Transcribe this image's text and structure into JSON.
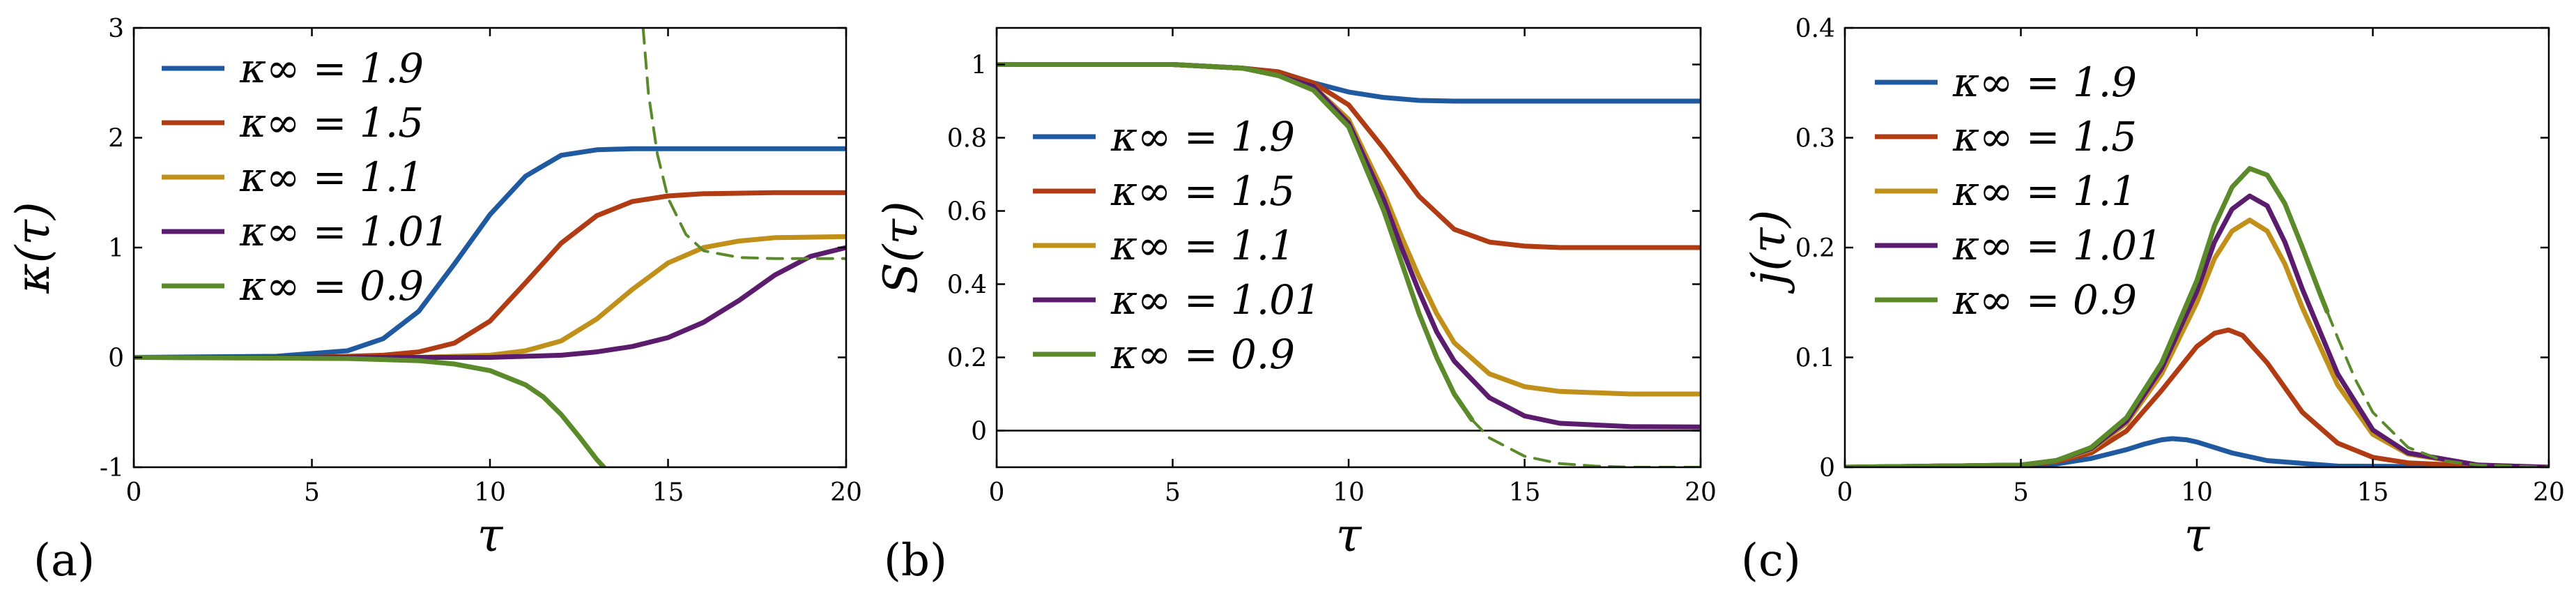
{
  "colors": {
    "blue": "#1f5aa0",
    "red": "#b13c14",
    "gold": "#c1901a",
    "purple": "#5c1c6e",
    "green": "#5b8a2a"
  },
  "chart_data": [
    {
      "type": "line",
      "panel_label": "(a)",
      "xlabel": "τ",
      "ylabel": "κ(τ)",
      "xlim": [
        0,
        20
      ],
      "ylim": [
        -1,
        3
      ],
      "xticks": [
        "0",
        "5",
        "10",
        "15",
        "20"
      ],
      "yticks": [
        "-1",
        "0",
        "1",
        "2",
        "3"
      ],
      "legend_position": "top-left",
      "series": [
        {
          "name": "κ∞ = 1.9",
          "color": "blue",
          "x": [
            0,
            4,
            6,
            7,
            8,
            9,
            10,
            11,
            12,
            13,
            14,
            16,
            18,
            20
          ],
          "y": [
            0,
            0.01,
            0.06,
            0.17,
            0.42,
            0.85,
            1.3,
            1.65,
            1.84,
            1.89,
            1.9,
            1.9,
            1.9,
            1.9
          ]
        },
        {
          "name": "κ∞ = 1.5",
          "color": "red",
          "x": [
            0,
            5,
            7,
            8,
            9,
            10,
            11,
            12,
            13,
            14,
            15,
            16,
            18,
            20
          ],
          "y": [
            0,
            0,
            0.02,
            0.05,
            0.13,
            0.33,
            0.68,
            1.04,
            1.29,
            1.42,
            1.47,
            1.49,
            1.5,
            1.5
          ]
        },
        {
          "name": "κ∞ = 1.1",
          "color": "gold",
          "x": [
            0,
            8,
            10,
            11,
            12,
            13,
            14,
            15,
            16,
            17,
            18,
            20
          ],
          "y": [
            0,
            0,
            0.02,
            0.06,
            0.15,
            0.35,
            0.62,
            0.86,
            1.0,
            1.06,
            1.09,
            1.1
          ]
        },
        {
          "name": "κ∞ = 1.01",
          "color": "purple",
          "x": [
            0,
            10,
            12,
            13,
            14,
            15,
            16,
            17,
            18,
            19,
            20
          ],
          "y": [
            0,
            0.0,
            0.02,
            0.05,
            0.1,
            0.18,
            0.32,
            0.52,
            0.75,
            0.92,
            1.0
          ]
        },
        {
          "name": "κ∞ = 0.9",
          "color": "green",
          "x": [
            0,
            6,
            8,
            9,
            10,
            11,
            11.5,
            12,
            12.5,
            13.0,
            13.2
          ],
          "y": [
            0,
            -0.01,
            -0.03,
            -0.06,
            -0.12,
            -0.25,
            -0.36,
            -0.52,
            -0.72,
            -0.93,
            -1.0
          ]
        },
        {
          "name": "κ∞ = 0.9 (continuation)",
          "color": "green",
          "style": "dashed",
          "x": [
            14.3,
            14.45,
            14.7,
            15,
            15.5,
            16,
            17,
            18,
            19,
            20
          ],
          "y": [
            3.0,
            2.4,
            1.85,
            1.45,
            1.12,
            0.97,
            0.91,
            0.9,
            0.9,
            0.9
          ]
        }
      ]
    },
    {
      "type": "line",
      "panel_label": "(b)",
      "xlabel": "τ",
      "ylabel": "S(τ)",
      "xlim": [
        0,
        20
      ],
      "ylim": [
        -0.1,
        1.1
      ],
      "xticks": [
        "0",
        "5",
        "10",
        "15",
        "20"
      ],
      "yticks": [
        "0",
        "0.2",
        "0.4",
        "0.6",
        "0.8",
        "1"
      ],
      "legend_position": "center-left",
      "series": [
        {
          "name": "κ∞ = 1.9",
          "color": "blue",
          "x": [
            0,
            5,
            7,
            8,
            9,
            10,
            11,
            12,
            13,
            15,
            20
          ],
          "y": [
            1.0,
            1.0,
            0.99,
            0.98,
            0.95,
            0.925,
            0.91,
            0.902,
            0.9,
            0.9,
            0.9
          ]
        },
        {
          "name": "κ∞ = 1.5",
          "color": "red",
          "x": [
            0,
            5,
            7,
            8,
            9,
            10,
            11,
            12,
            13,
            14,
            15,
            16,
            18,
            20
          ],
          "y": [
            1.0,
            1.0,
            0.99,
            0.98,
            0.95,
            0.89,
            0.77,
            0.64,
            0.55,
            0.515,
            0.504,
            0.5,
            0.5,
            0.5
          ]
        },
        {
          "name": "κ∞ = 1.1",
          "color": "gold",
          "x": [
            0,
            5,
            7,
            8,
            9,
            10,
            11,
            11.5,
            12,
            12.5,
            13,
            14,
            15,
            16,
            18,
            20
          ],
          "y": [
            1.0,
            1.0,
            0.99,
            0.97,
            0.94,
            0.85,
            0.65,
            0.53,
            0.42,
            0.32,
            0.24,
            0.155,
            0.12,
            0.107,
            0.1,
            0.1
          ]
        },
        {
          "name": "κ∞ = 1.01",
          "color": "purple",
          "x": [
            0,
            5,
            7,
            8,
            9,
            10,
            11,
            11.5,
            12,
            12.5,
            13,
            14,
            15,
            16,
            18,
            20
          ],
          "y": [
            1.0,
            1.0,
            0.99,
            0.97,
            0.94,
            0.84,
            0.63,
            0.5,
            0.38,
            0.27,
            0.19,
            0.09,
            0.04,
            0.02,
            0.011,
            0.01
          ]
        },
        {
          "name": "κ∞ = 0.9",
          "color": "green",
          "x": [
            0,
            5,
            7,
            8,
            9,
            10,
            11,
            11.5,
            12,
            12.5,
            13,
            13.5
          ],
          "y": [
            1.0,
            1.0,
            0.99,
            0.97,
            0.93,
            0.83,
            0.6,
            0.46,
            0.32,
            0.2,
            0.1,
            0.03
          ]
        },
        {
          "name": "κ∞ = 0.9 (continuation)",
          "color": "green",
          "style": "dashed",
          "x": [
            13.5,
            14,
            15,
            16,
            17,
            18,
            20
          ],
          "y": [
            0.03,
            -0.02,
            -0.07,
            -0.09,
            -0.097,
            -0.1,
            -0.1
          ]
        }
      ]
    },
    {
      "type": "line",
      "panel_label": "(c)",
      "xlabel": "τ",
      "ylabel": "j(τ)",
      "xlim": [
        0,
        20
      ],
      "ylim": [
        0,
        0.4
      ],
      "xticks": [
        "0",
        "5",
        "10",
        "15",
        "20"
      ],
      "yticks": [
        "0",
        "0.1",
        "0.2",
        "0.3",
        "0.4"
      ],
      "legend_position": "top-left",
      "series": [
        {
          "name": "κ∞ = 1.9",
          "color": "blue",
          "x": [
            0,
            5,
            6,
            7,
            8,
            8.5,
            9,
            9.3,
            9.7,
            10,
            11,
            12,
            14,
            20
          ],
          "y": [
            0,
            0.001,
            0.003,
            0.008,
            0.016,
            0.021,
            0.025,
            0.026,
            0.025,
            0.023,
            0.013,
            0.006,
            0.001,
            0
          ]
        },
        {
          "name": "κ∞ = 1.5",
          "color": "red",
          "x": [
            0,
            5,
            6,
            7,
            8,
            9,
            10,
            10.5,
            10.9,
            11.3,
            12,
            13,
            14,
            15,
            16,
            18,
            20
          ],
          "y": [
            0,
            0.002,
            0.005,
            0.013,
            0.033,
            0.07,
            0.11,
            0.122,
            0.125,
            0.12,
            0.095,
            0.05,
            0.022,
            0.009,
            0.004,
            0.001,
            0
          ]
        },
        {
          "name": "κ∞ = 1.1",
          "color": "gold",
          "x": [
            0,
            5,
            6,
            7,
            8,
            9,
            10,
            10.5,
            11,
            11.5,
            12,
            12.5,
            13,
            14,
            15,
            16,
            18,
            20
          ],
          "y": [
            0,
            0.002,
            0.006,
            0.016,
            0.04,
            0.085,
            0.15,
            0.19,
            0.215,
            0.225,
            0.215,
            0.185,
            0.145,
            0.075,
            0.03,
            0.012,
            0.002,
            0
          ]
        },
        {
          "name": "κ∞ = 1.01",
          "color": "purple",
          "x": [
            0,
            5,
            6,
            7,
            8,
            9,
            10,
            10.5,
            11,
            11.5,
            12,
            12.5,
            13,
            14,
            15,
            16,
            18,
            20
          ],
          "y": [
            0,
            0.002,
            0.006,
            0.017,
            0.042,
            0.09,
            0.16,
            0.205,
            0.235,
            0.247,
            0.238,
            0.205,
            0.162,
            0.085,
            0.034,
            0.013,
            0.002,
            0
          ]
        },
        {
          "name": "κ∞ = 0.9",
          "color": "green",
          "x": [
            0,
            5,
            6,
            7,
            8,
            9,
            10,
            10.5,
            11,
            11.5,
            12,
            12.5,
            13,
            13.5,
            13.7
          ],
          "y": [
            0,
            0.002,
            0.006,
            0.018,
            0.045,
            0.095,
            0.17,
            0.22,
            0.255,
            0.272,
            0.266,
            0.24,
            0.2,
            0.158,
            0.142
          ]
        },
        {
          "name": "κ∞ = 0.9 (continuation)",
          "color": "green",
          "style": "dashed",
          "x": [
            13.7,
            14,
            14.5,
            15,
            16,
            17,
            18,
            20
          ],
          "y": [
            0.142,
            0.118,
            0.08,
            0.05,
            0.018,
            0.006,
            0.002,
            0
          ]
        }
      ]
    }
  ]
}
